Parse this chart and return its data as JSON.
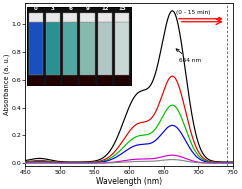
{
  "xlabel": "Wavelength (nm)",
  "ylabel": "Absorbance (a. u.)",
  "xlim": [
    450,
    750
  ],
  "ylim": [
    -0.02,
    1.15
  ],
  "xticks": [
    450,
    500,
    550,
    600,
    650,
    700,
    750
  ],
  "peak_wavelength": 664,
  "annotation_text": "664 nm",
  "arrow_label": "(0 - 15 min)",
  "dashed_line_x": 742,
  "curve_colors": [
    "#000000",
    "#dd0000",
    "#00bb00",
    "#0000dd",
    "#cc00cc",
    "#888888"
  ],
  "time_labels": [
    "0",
    "3",
    "6",
    "9",
    "12",
    "15"
  ],
  "background_color": "#ffffff",
  "peak_heights": [
    1.05,
    0.6,
    0.4,
    0.26,
    0.055,
    0.025
  ],
  "shoulder_heights": [
    0.48,
    0.27,
    0.185,
    0.125,
    0.028,
    0.012
  ],
  "inset_bg": "#111111",
  "inset_vial_colors": [
    "#1a4fc0",
    "#2a9090",
    "#50a8a0",
    "#85b8b0",
    "#b0c8c5",
    "#c8d8d5"
  ],
  "inset_label_color": "#ffffff"
}
